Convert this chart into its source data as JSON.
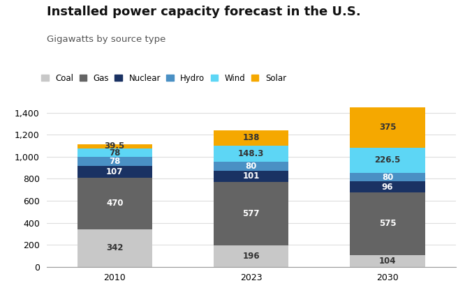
{
  "title": "Installed power capacity forecast in the U.S.",
  "subtitle": "Gigawatts by source type",
  "years": [
    "2010",
    "2023",
    "2030"
  ],
  "sources": [
    "Coal",
    "Gas",
    "Nuclear",
    "Hydro",
    "Wind",
    "Solar"
  ],
  "colors": {
    "Coal": "#c8c8c8",
    "Gas": "#646464",
    "Nuclear": "#1a3263",
    "Hydro": "#4a90c4",
    "Wind": "#5dd6f5",
    "Solar": "#f5a800"
  },
  "values": {
    "Coal": [
      342,
      196,
      104
    ],
    "Gas": [
      470,
      577,
      575
    ],
    "Nuclear": [
      107,
      101,
      96
    ],
    "Hydro": [
      78,
      80,
      80
    ],
    "Wind": [
      78,
      148.3,
      226.5
    ],
    "Solar": [
      39.5,
      138,
      375
    ]
  },
  "label_colors": {
    "Coal": "#333333",
    "Gas": "#ffffff",
    "Nuclear": "#ffffff",
    "Hydro": "#ffffff",
    "Wind": "#333333",
    "Solar": "#333333"
  },
  "ylim": [
    0,
    1450
  ],
  "yticks": [
    0,
    200,
    400,
    600,
    800,
    1000,
    1200,
    1400
  ],
  "bar_width": 0.55,
  "figsize": [
    6.66,
    4.16
  ],
  "dpi": 100,
  "background_color": "#ffffff",
  "title_fontsize": 13,
  "subtitle_fontsize": 9.5,
  "legend_fontsize": 8.5,
  "tick_fontsize": 9,
  "label_fontsize": 8.5
}
